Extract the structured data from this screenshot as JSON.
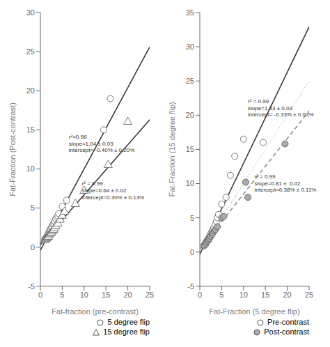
{
  "chart_data": [
    {
      "type": "scatter",
      "x_label": "Fat-fraction (pre-contrast)",
      "y_label": "Fat-Fraction (Post-contrast)",
      "xlim": [
        0,
        25
      ],
      "ylim": [
        -5,
        30
      ],
      "xticks": [
        0,
        5,
        10,
        15,
        20,
        25
      ],
      "yticks": [
        -5,
        0,
        5,
        10,
        15,
        20,
        25,
        30
      ],
      "grid": false,
      "legend": "lower right",
      "series": [
        {
          "name": "5 degree flip",
          "color": "#ffffff",
          "marker": "circle",
          "x": [
            1.0,
            1.2,
            1.3,
            1.5,
            1.6,
            1.8,
            2.0,
            2.1,
            2.2,
            2.3,
            2.5,
            2.7,
            2.9,
            3.1,
            3.3,
            3.5,
            3.8,
            4.0,
            4.2,
            5.0,
            6.0,
            14.5,
            16.0
          ],
          "y": [
            1.0,
            1.1,
            1.2,
            1.4,
            1.5,
            1.7,
            1.9,
            2.0,
            2.2,
            2.3,
            2.5,
            2.7,
            2.9,
            3.0,
            3.3,
            3.6,
            3.8,
            4.0,
            4.3,
            5.2,
            6.0,
            15.0,
            19.0
          ]
        },
        {
          "name": "15 degree flip",
          "color": "#ffffff",
          "marker": "triangle",
          "x": [
            1.0,
            1.2,
            1.4,
            1.6,
            1.8,
            2.0,
            2.2,
            2.5,
            2.7,
            3.0,
            3.2,
            3.5,
            4.0,
            4.5,
            5.0,
            5.5,
            8.0,
            10.0,
            15.5,
            20.0
          ],
          "y": [
            0.9,
            1.0,
            1.1,
            1.2,
            1.3,
            1.5,
            1.7,
            1.8,
            2.0,
            2.2,
            2.4,
            2.7,
            3.0,
            3.5,
            4.0,
            4.5,
            5.5,
            7.2,
            10.5,
            16.0
          ]
        }
      ],
      "lines": [
        {
          "x": [
            0,
            25
          ],
          "y": [
            -0.4,
            25.6
          ],
          "color": "#333333",
          "line_style": "solid"
        },
        {
          "x": [
            0,
            25
          ],
          "y": [
            0.3,
            16.3
          ],
          "color": "#333333",
          "line_style": "solid"
        }
      ],
      "annotations": [
        {
          "text": "r²=0.98\nslope=1.04 ± 0.03\nintercept= -0.40% ± 0.20%",
          "x": 6.5,
          "y": 14.5
        },
        {
          "text": "r² = 0.99\nslope=0.64 ± 0.02\nintercept=0.30% ± 0.13%",
          "x": 9.5,
          "y": 8.5
        }
      ]
    },
    {
      "type": "scatter",
      "x_label": "Fat-Fraction (5 degree flip)",
      "y_label": "Fat-Fraction (15 degree flip)",
      "xlim": [
        0,
        25
      ],
      "ylim": [
        -5,
        35
      ],
      "xticks": [
        0,
        5,
        10,
        15,
        20,
        25
      ],
      "yticks": [
        -5,
        0,
        5,
        10,
        15,
        20,
        25,
        30,
        35
      ],
      "grid": false,
      "legend": "lower right",
      "series": [
        {
          "name": "Pre-contrast",
          "color": "#ffffff",
          "marker": "circle",
          "x": [
            1.0,
            1.2,
            1.4,
            1.6,
            1.8,
            2.0,
            2.2,
            2.4,
            2.6,
            2.8,
            3.0,
            3.2,
            3.5,
            3.8,
            4.0,
            4.3,
            5.0,
            6.0,
            7.0,
            8.0,
            10.0,
            14.5
          ],
          "y": [
            1.0,
            1.2,
            1.4,
            1.6,
            1.8,
            2.0,
            2.2,
            2.5,
            2.8,
            3.0,
            3.3,
            3.5,
            4.0,
            4.5,
            5.0,
            5.5,
            7.0,
            8.0,
            11.2,
            14.0,
            16.5,
            16.0
          ]
        },
        {
          "name": "Post-contrast",
          "color": "#aaaaaa",
          "marker": "circle",
          "x": [
            1.0,
            1.3,
            1.5,
            1.8,
            2.0,
            2.2,
            2.5,
            2.8,
            3.0,
            3.3,
            3.6,
            4.0,
            5.0,
            5.5,
            10.5,
            11.0,
            19.5
          ],
          "y": [
            0.9,
            1.1,
            1.4,
            1.6,
            1.8,
            2.0,
            2.3,
            2.6,
            2.8,
            3.1,
            3.3,
            3.7,
            5.0,
            5.2,
            10.2,
            8.0,
            15.8
          ]
        }
      ],
      "lines": [
        {
          "x": [
            0,
            25
          ],
          "y": [
            -0.33,
            32.92
          ],
          "color": "#333333",
          "line_style": "solid"
        },
        {
          "x": [
            0,
            25
          ],
          "y": [
            0.38,
            20.63
          ],
          "color": "#888888",
          "line_style": "dashed"
        },
        {
          "x": [
            0,
            25
          ],
          "y": [
            0,
            25
          ],
          "color": "#888888",
          "line_style": "dotted"
        }
      ],
      "annotations": [
        {
          "text": "r² = 0.99\nslope=1.33 ± 0.03\nintercept= -0.33% ± 0.03%",
          "x": 11.0,
          "y": 22.5
        },
        {
          "text": "r² = 0.99\nslope=0.81 ±  0.02\nintercept=0.38% ± 0.11%",
          "x": 12.5,
          "y": 11.5
        }
      ]
    }
  ]
}
